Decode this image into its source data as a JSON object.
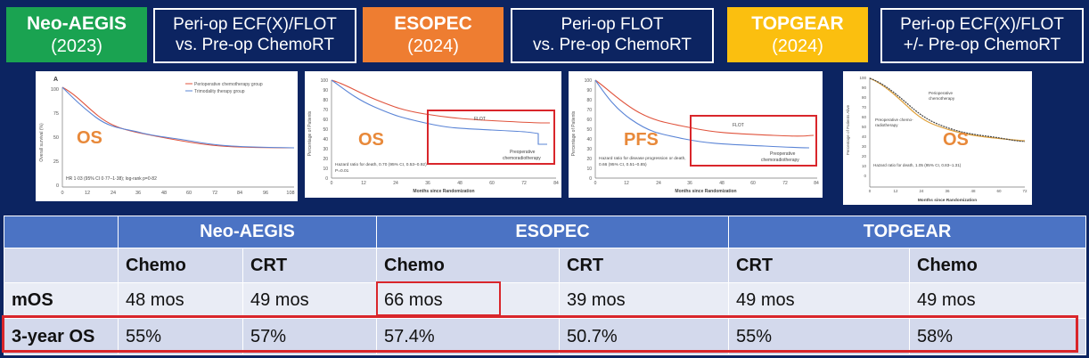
{
  "header": {
    "trials": [
      {
        "name": "Neo-AEGIS",
        "year": "(2023)",
        "color": "#1aa351"
      },
      {
        "name": "ESOPEC",
        "year": "(2024)",
        "color": "#ee7d31"
      },
      {
        "name": "TOPGEAR",
        "year": "(2024)",
        "color": "#fbbf0f"
      }
    ],
    "descriptions": [
      {
        "line1": "Peri-op ECF(X)/FLOT",
        "line2": "vs. Pre-op ChemoRT"
      },
      {
        "line1": "Peri-op FLOT",
        "line2": "vs. Pre-op ChemoRT"
      },
      {
        "line1": "Peri-op ECF(X)/FLOT",
        "line2": "+/- Pre-op ChemoRT"
      }
    ]
  },
  "charts": [
    {
      "overlay": "OS",
      "panel_letter": "A",
      "ylabel": "Overall survival (%)",
      "xlabel": "",
      "legend": [
        "Perioperative chemotherapy group",
        "Trimodality therapy group"
      ],
      "note": "HR 1·03 (95% CI 0·77–1·38); log-rank p=0·82",
      "yticks": [
        "100",
        "75",
        "50",
        "25",
        "0"
      ],
      "xticks": [
        "0",
        "12",
        "24",
        "36",
        "48",
        "60",
        "72",
        "84",
        "96",
        "108"
      ]
    },
    {
      "overlay": "OS",
      "ylabel": "Percentage of Patients",
      "xlabel": "Months since Randomization",
      "labels": [
        "FLOT",
        "Preoperative",
        "chemoradiotherapy"
      ],
      "note": "Hazard ratio for death, 0.70 (95% CI, 0.53–0.92)",
      "note2": "P=0.01",
      "yticks": [
        "100",
        "90",
        "80",
        "70",
        "60",
        "50",
        "40",
        "30",
        "20",
        "10",
        "0"
      ],
      "xticks": [
        "0",
        "12",
        "24",
        "36",
        "48",
        "60",
        "72",
        "84"
      ]
    },
    {
      "overlay": "PFS",
      "ylabel": "Percentage of Patients",
      "xlabel": "Months since Randomization",
      "labels": [
        "FLOT",
        "Preoperative",
        "chemoradiotherapy"
      ],
      "note": "Hazard ratio for disease progression or death,",
      "note2": "0.66 (95% CI, 0.51–0.85)",
      "yticks": [
        "100",
        "90",
        "80",
        "70",
        "60",
        "50",
        "40",
        "30",
        "20",
        "10",
        "0"
      ],
      "xticks": [
        "0",
        "12",
        "24",
        "36",
        "48",
        "60",
        "72",
        "84"
      ]
    },
    {
      "overlay": "OS",
      "ylabel": "Percentage of Patients Alive",
      "xlabel": "Months since Randomization",
      "labels": [
        "Perioperative",
        "chemotherapy",
        "Preoperative chemo-",
        "radiotherapy"
      ],
      "note": "Hazard ratio for death, 1.05 (95% CI, 0.83–1.31)",
      "yticks": [
        "100",
        "90",
        "80",
        "70",
        "60",
        "50",
        "40",
        "30",
        "20",
        "10",
        "0"
      ],
      "xticks": [
        "0",
        "12",
        "24",
        "36",
        "48",
        "60",
        "72"
      ]
    }
  ],
  "table": {
    "groups": [
      "Neo-AEGIS",
      "ESOPEC",
      "TOPGEAR"
    ],
    "subheaders": [
      "Chemo",
      "CRT",
      "Chemo",
      "CRT",
      "CRT",
      "Chemo"
    ],
    "rows": [
      {
        "label": "mOS",
        "values": [
          "48 mos",
          "49 mos",
          "66 mos",
          "39 mos",
          "49 mos",
          "49 mos"
        ]
      },
      {
        "label": "3-year OS",
        "values": [
          "55%",
          "57%",
          "57.4%",
          "50.7%",
          "55%",
          "58%"
        ]
      }
    ]
  },
  "colors": {
    "background": "#0c2461",
    "table_header": "#4b73c4",
    "highlight": "#d9262b",
    "series_red": "#e0533c",
    "series_blue": "#5a84d6"
  }
}
